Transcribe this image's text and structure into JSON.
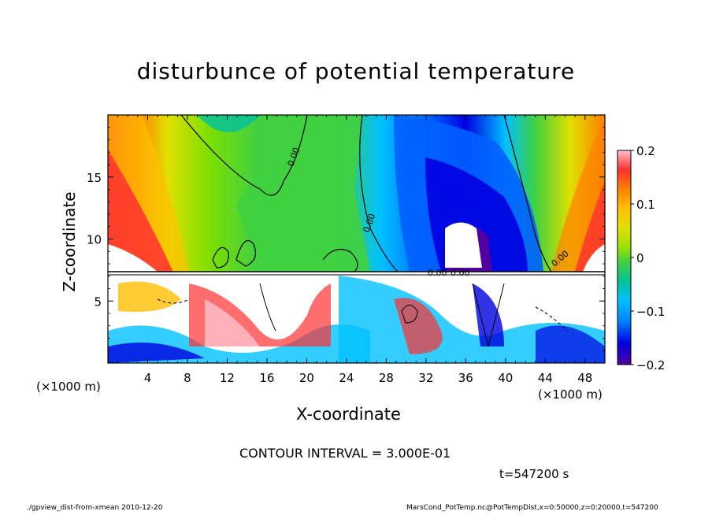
{
  "chart_data": {
    "type": "heatmap",
    "title": "disturbunce of potential temperature",
    "xlabel": "X-coordinate",
    "ylabel": "Z-coordinate",
    "x_unit_label": "(×1000 m)",
    "xlim": [
      0,
      50
    ],
    "ylim": [
      0,
      20
    ],
    "x_ticks": [
      "4",
      "8",
      "12",
      "16",
      "20",
      "24",
      "28",
      "32",
      "36",
      "40",
      "44",
      "48"
    ],
    "y_ticks": [
      "5",
      "10",
      "15"
    ],
    "colorbar": {
      "ticks": [
        "0.2",
        "0.1",
        "0",
        "−0.1",
        "−0.2"
      ],
      "range": [
        -0.2,
        0.2
      ],
      "colors": [
        "#ffc0cb",
        "#ff3030",
        "#ff8000",
        "#ffc000",
        "#e0e000",
        "#a0e000",
        "#40d040",
        "#00c0a0",
        "#00c0ff",
        "#0080ff",
        "#0000e0",
        "#5000a0"
      ]
    },
    "contour_labels": [
      "0.00",
      "0.00",
      "0.00",
      "0.00",
      "0.00"
    ],
    "contour_interval_text": "CONTOUR INTERVAL = 3.000E-01"
  },
  "time_text": "t=547200 s",
  "footer": {
    "left": "./gpview_dist-from-xmean  2010-12-20",
    "right": "MarsCond_PotTemp.nc@PotTempDist,x=0:50000,z=0:20000,t=547200"
  }
}
